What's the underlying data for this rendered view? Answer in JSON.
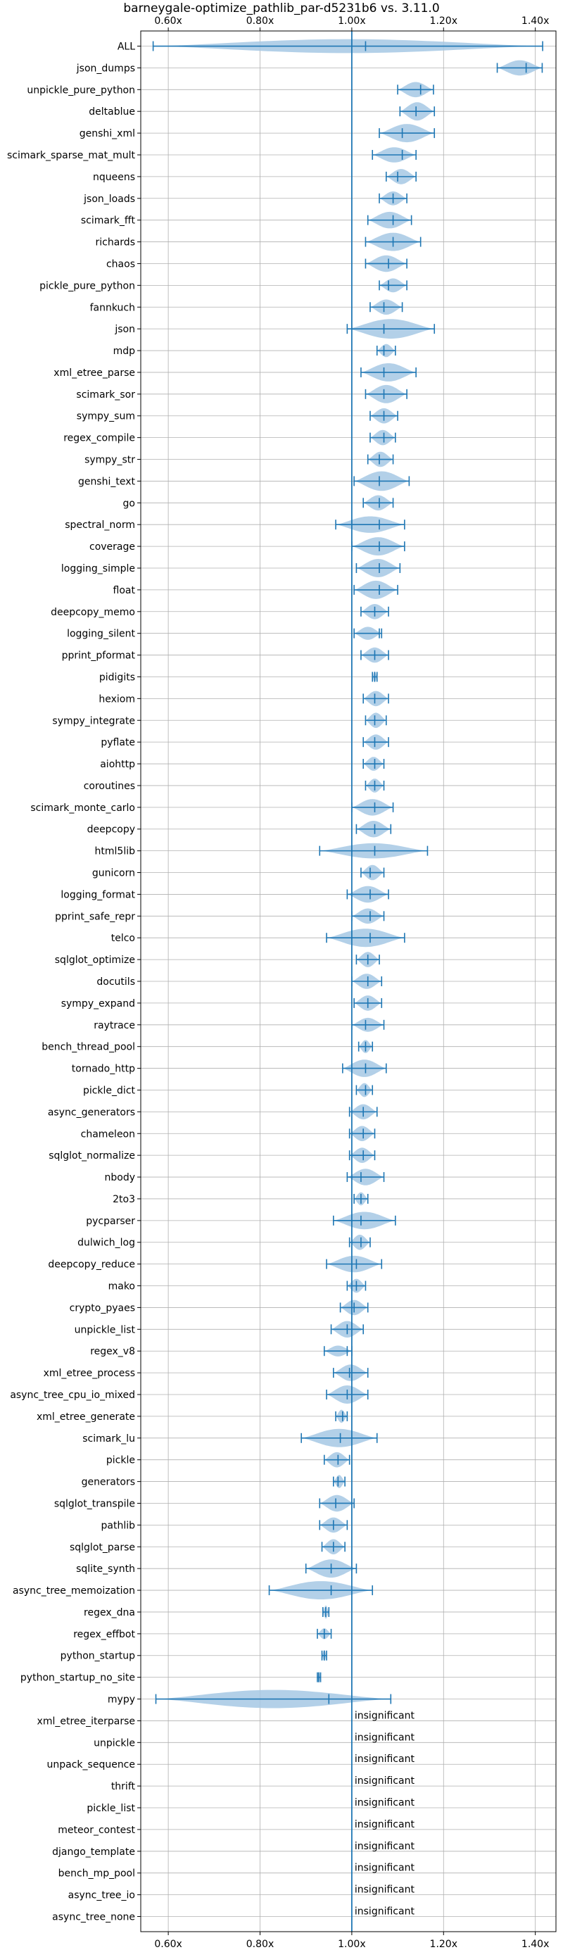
{
  "chart_data": {
    "type": "violin",
    "title": "barneygale-optimize_pathlib_par-d5231b6 vs. 3.11.0",
    "xlabel": "",
    "ylabel": "",
    "xlim": [
      0.54,
      1.445
    ],
    "x_ticks": [
      0.6,
      0.8,
      1.0,
      1.2,
      1.4
    ],
    "x_tick_labels": [
      "0.60x",
      "0.80x",
      "1.00x",
      "1.20x",
      "1.40x"
    ],
    "reference_line": 1.0,
    "grid": true,
    "color": "#1f77b4",
    "fill_color": "#a6c8e4",
    "rows": [
      {
        "label": "ALL",
        "min": 0.567,
        "max": 1.416,
        "mean": 1.03,
        "width": 0.32
      },
      {
        "label": "json_dumps",
        "min": 1.317,
        "max": 1.415,
        "mean": 1.38,
        "width": 0.35
      },
      {
        "label": "unpickle_pure_python",
        "min": 1.1,
        "max": 1.178,
        "mean": 1.15,
        "width": 0.35
      },
      {
        "label": "deltablue",
        "min": 1.105,
        "max": 1.18,
        "mean": 1.14,
        "width": 0.42
      },
      {
        "label": "genshi_xml",
        "min": 1.06,
        "max": 1.18,
        "mean": 1.11,
        "width": 0.42
      },
      {
        "label": "scimark_sparse_mat_mult",
        "min": 1.045,
        "max": 1.14,
        "mean": 1.11,
        "width": 0.35
      },
      {
        "label": "nqueens",
        "min": 1.075,
        "max": 1.14,
        "mean": 1.1,
        "width": 0.35
      },
      {
        "label": "json_loads",
        "min": 1.06,
        "max": 1.12,
        "mean": 1.09,
        "width": 0.32
      },
      {
        "label": "scimark_fft",
        "min": 1.035,
        "max": 1.13,
        "mean": 1.09,
        "width": 0.38
      },
      {
        "label": "richards",
        "min": 1.03,
        "max": 1.15,
        "mean": 1.09,
        "width": 0.42
      },
      {
        "label": "chaos",
        "min": 1.03,
        "max": 1.12,
        "mean": 1.08,
        "width": 0.38
      },
      {
        "label": "pickle_pure_python",
        "min": 1.06,
        "max": 1.12,
        "mean": 1.08,
        "width": 0.32
      },
      {
        "label": "fannkuch",
        "min": 1.04,
        "max": 1.11,
        "mean": 1.07,
        "width": 0.35
      },
      {
        "label": "json",
        "min": 0.99,
        "max": 1.18,
        "mean": 1.07,
        "width": 0.45
      },
      {
        "label": "mdp",
        "min": 1.055,
        "max": 1.095,
        "mean": 1.07,
        "width": 0.3
      },
      {
        "label": "xml_etree_parse",
        "min": 1.02,
        "max": 1.14,
        "mean": 1.07,
        "width": 0.42
      },
      {
        "label": "scimark_sor",
        "min": 1.03,
        "max": 1.12,
        "mean": 1.07,
        "width": 0.42
      },
      {
        "label": "sympy_sum",
        "min": 1.04,
        "max": 1.1,
        "mean": 1.07,
        "width": 0.35
      },
      {
        "label": "regex_compile",
        "min": 1.04,
        "max": 1.095,
        "mean": 1.07,
        "width": 0.35
      },
      {
        "label": "sympy_str",
        "min": 1.035,
        "max": 1.09,
        "mean": 1.06,
        "width": 0.35
      },
      {
        "label": "genshi_text",
        "min": 1.005,
        "max": 1.125,
        "mean": 1.06,
        "width": 0.45
      },
      {
        "label": "go",
        "min": 1.025,
        "max": 1.09,
        "mean": 1.06,
        "width": 0.35
      },
      {
        "label": "spectral_norm",
        "min": 0.965,
        "max": 1.115,
        "mean": 1.06,
        "width": 0.38
      },
      {
        "label": "coverage",
        "min": 1.0,
        "max": 1.115,
        "mean": 1.06,
        "width": 0.42
      },
      {
        "label": "logging_simple",
        "min": 1.01,
        "max": 1.105,
        "mean": 1.06,
        "width": 0.42
      },
      {
        "label": "float",
        "min": 1.005,
        "max": 1.1,
        "mean": 1.06,
        "width": 0.42
      },
      {
        "label": "deepcopy_memo",
        "min": 1.02,
        "max": 1.08,
        "mean": 1.05,
        "width": 0.35
      },
      {
        "label": "logging_silent",
        "min": 1.005,
        "max": 1.065,
        "mean": 1.06,
        "width": 0.3
      },
      {
        "label": "pprint_pformat",
        "min": 1.02,
        "max": 1.08,
        "mean": 1.05,
        "width": 0.35
      },
      {
        "label": "pidigits",
        "min": 1.045,
        "max": 1.055,
        "mean": 1.05,
        "width": 0.25
      },
      {
        "label": "hexiom",
        "min": 1.025,
        "max": 1.08,
        "mean": 1.05,
        "width": 0.35
      },
      {
        "label": "sympy_integrate",
        "min": 1.03,
        "max": 1.075,
        "mean": 1.05,
        "width": 0.35
      },
      {
        "label": "pyflate",
        "min": 1.025,
        "max": 1.08,
        "mean": 1.05,
        "width": 0.35
      },
      {
        "label": "aiohttp",
        "min": 1.025,
        "max": 1.07,
        "mean": 1.05,
        "width": 0.32
      },
      {
        "label": "coroutines",
        "min": 1.03,
        "max": 1.07,
        "mean": 1.05,
        "width": 0.32
      },
      {
        "label": "scimark_monte_carlo",
        "min": 1.0,
        "max": 1.09,
        "mean": 1.05,
        "width": 0.38
      },
      {
        "label": "deepcopy",
        "min": 1.01,
        "max": 1.085,
        "mean": 1.05,
        "width": 0.38
      },
      {
        "label": "html5lib",
        "min": 0.93,
        "max": 1.165,
        "mean": 1.05,
        "width": 0.35
      },
      {
        "label": "gunicorn",
        "min": 1.02,
        "max": 1.07,
        "mean": 1.04,
        "width": 0.35
      },
      {
        "label": "logging_format",
        "min": 0.99,
        "max": 1.08,
        "mean": 1.04,
        "width": 0.38
      },
      {
        "label": "pprint_safe_repr",
        "min": 1.0,
        "max": 1.07,
        "mean": 1.04,
        "width": 0.35
      },
      {
        "label": "telco",
        "min": 0.945,
        "max": 1.115,
        "mean": 1.04,
        "width": 0.42
      },
      {
        "label": "sqlglot_optimize",
        "min": 1.01,
        "max": 1.06,
        "mean": 1.035,
        "width": 0.35
      },
      {
        "label": "docutils",
        "min": 1.0,
        "max": 1.065,
        "mean": 1.035,
        "width": 0.35
      },
      {
        "label": "sympy_expand",
        "min": 1.005,
        "max": 1.065,
        "mean": 1.035,
        "width": 0.35
      },
      {
        "label": "raytrace",
        "min": 1.0,
        "max": 1.07,
        "mean": 1.03,
        "width": 0.32
      },
      {
        "label": "bench_thread_pool",
        "min": 1.015,
        "max": 1.045,
        "mean": 1.03,
        "width": 0.3
      },
      {
        "label": "tornado_http",
        "min": 0.98,
        "max": 1.075,
        "mean": 1.03,
        "width": 0.4
      },
      {
        "label": "pickle_dict",
        "min": 1.01,
        "max": 1.045,
        "mean": 1.03,
        "width": 0.32
      },
      {
        "label": "async_generators",
        "min": 0.995,
        "max": 1.055,
        "mean": 1.025,
        "width": 0.35
      },
      {
        "label": "chameleon",
        "min": 0.995,
        "max": 1.05,
        "mean": 1.025,
        "width": 0.35
      },
      {
        "label": "sqlglot_normalize",
        "min": 0.995,
        "max": 1.05,
        "mean": 1.025,
        "width": 0.35
      },
      {
        "label": "nbody",
        "min": 0.99,
        "max": 1.07,
        "mean": 1.02,
        "width": 0.38
      },
      {
        "label": "2to3",
        "min": 1.005,
        "max": 1.035,
        "mean": 1.02,
        "width": 0.3
      },
      {
        "label": "pycparser",
        "min": 0.96,
        "max": 1.095,
        "mean": 1.02,
        "width": 0.4
      },
      {
        "label": "dulwich_log",
        "min": 0.995,
        "max": 1.04,
        "mean": 1.02,
        "width": 0.35
      },
      {
        "label": "deepcopy_reduce",
        "min": 0.945,
        "max": 1.065,
        "mean": 1.01,
        "width": 0.38
      },
      {
        "label": "mako",
        "min": 0.99,
        "max": 1.03,
        "mean": 1.01,
        "width": 0.32
      },
      {
        "label": "crypto_pyaes",
        "min": 0.975,
        "max": 1.035,
        "mean": 1.005,
        "width": 0.35
      },
      {
        "label": "unpickle_list",
        "min": 0.955,
        "max": 1.025,
        "mean": 0.99,
        "width": 0.38
      },
      {
        "label": "regex_v8",
        "min": 0.94,
        "max": 1.0,
        "mean": 0.99,
        "width": 0.25
      },
      {
        "label": "xml_etree_process",
        "min": 0.96,
        "max": 1.035,
        "mean": 0.995,
        "width": 0.38
      },
      {
        "label": "async_tree_cpu_io_mixed",
        "min": 0.945,
        "max": 1.035,
        "mean": 0.99,
        "width": 0.42
      },
      {
        "label": "xml_etree_generate",
        "min": 0.965,
        "max": 0.99,
        "mean": 0.98,
        "width": 0.3
      },
      {
        "label": "scimark_lu",
        "min": 0.89,
        "max": 1.055,
        "mean": 0.975,
        "width": 0.42
      },
      {
        "label": "pickle",
        "min": 0.94,
        "max": 0.995,
        "mean": 0.97,
        "width": 0.35
      },
      {
        "label": "generators",
        "min": 0.96,
        "max": 0.985,
        "mean": 0.97,
        "width": 0.3
      },
      {
        "label": "sqlglot_transpile",
        "min": 0.93,
        "max": 1.005,
        "mean": 0.965,
        "width": 0.38
      },
      {
        "label": "pathlib",
        "min": 0.93,
        "max": 0.99,
        "mean": 0.96,
        "width": 0.35
      },
      {
        "label": "sqlglot_parse",
        "min": 0.935,
        "max": 0.985,
        "mean": 0.96,
        "width": 0.35
      },
      {
        "label": "sqlite_synth",
        "min": 0.9,
        "max": 1.01,
        "mean": 0.955,
        "width": 0.42
      },
      {
        "label": "async_tree_memoization",
        "min": 0.82,
        "max": 1.045,
        "mean": 0.955,
        "width": 0.42
      },
      {
        "label": "regex_dna",
        "min": 0.937,
        "max": 0.95,
        "mean": 0.943,
        "width": 0.3
      },
      {
        "label": "regex_effbot",
        "min": 0.925,
        "max": 0.955,
        "mean": 0.94,
        "width": 0.25
      },
      {
        "label": "python_startup",
        "min": 0.935,
        "max": 0.945,
        "mean": 0.94,
        "width": 0.25
      },
      {
        "label": "python_startup_no_site",
        "min": 0.925,
        "max": 0.932,
        "mean": 0.928,
        "width": 0.25
      },
      {
        "label": "mypy",
        "min": 0.573,
        "max": 1.085,
        "mean": 0.95,
        "width": 0.42
      },
      {
        "label": "xml_etree_iterparse",
        "insignificant": true
      },
      {
        "label": "unpickle",
        "insignificant": true
      },
      {
        "label": "unpack_sequence",
        "insignificant": true
      },
      {
        "label": "thrift",
        "insignificant": true
      },
      {
        "label": "pickle_list",
        "insignificant": true
      },
      {
        "label": "meteor_contest",
        "insignificant": true
      },
      {
        "label": "django_template",
        "insignificant": true
      },
      {
        "label": "bench_mp_pool",
        "insignificant": true
      },
      {
        "label": "async_tree_io",
        "insignificant": true
      },
      {
        "label": "async_tree_none",
        "insignificant": true
      }
    ],
    "annotation_text": "insignificant"
  }
}
